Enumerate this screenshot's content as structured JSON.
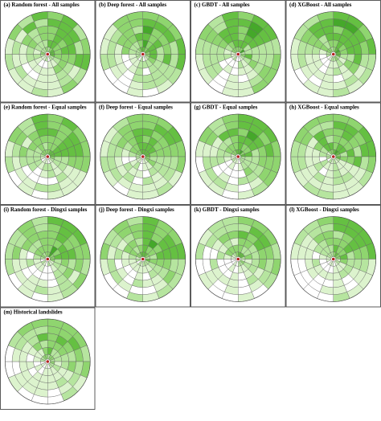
{
  "panels": [
    {
      "title": "(a) Random forest - All samples"
    },
    {
      "title": "(b) Deep forest - All samples"
    },
    {
      "title": "(c) GBDT - All samples"
    },
    {
      "title": "(d) XGBoost - All samples"
    },
    {
      "title": "(e) Random forest - Equal samples"
    },
    {
      "title": "(f) Deep forest - Equal samples"
    },
    {
      "title": "(g) GBDT - Equal samples"
    },
    {
      "title": "(h) XGBoost - Equal samples"
    },
    {
      "title": "(i) Random forest - Dingxi samples"
    },
    {
      "title": "(j) Deep forest - Dingxi samples"
    },
    {
      "title": "(k) GBDT - Dingxi samples"
    },
    {
      "title": "(l) XGBoost - Dingxi samples"
    },
    {
      "title": "(m) Historical landslides"
    }
  ]
}
